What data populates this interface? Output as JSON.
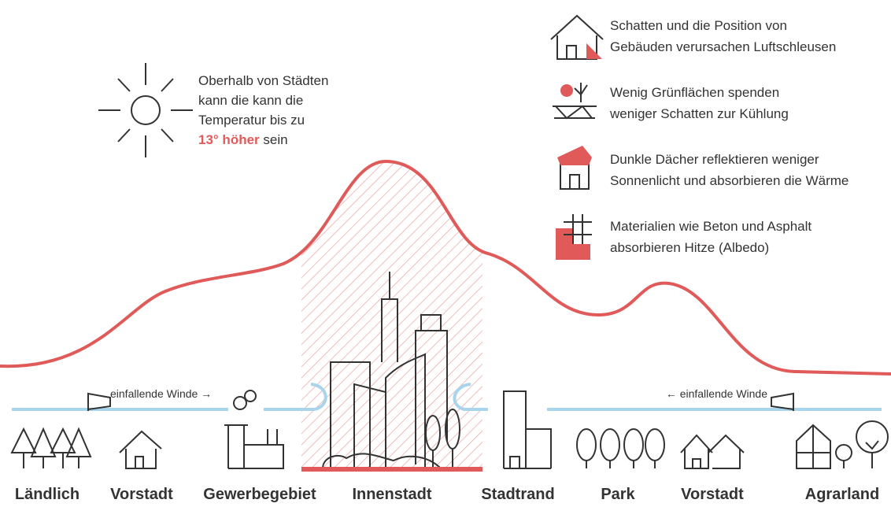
{
  "note": {
    "lines": [
      "Oberhalb von Städten",
      "kann die kann die",
      "Temperatur bis zu"
    ],
    "highlight": "13° höher",
    "tail": "sein"
  },
  "legend": [
    {
      "lines": [
        "Schatten und die Position von",
        "Gebäuden verursachen Luftschleusen"
      ]
    },
    {
      "lines": [
        "Wenig Grünflächen spenden",
        "weniger Schatten zur Kühlung"
      ]
    },
    {
      "lines": [
        "Dunkle Dächer reflektieren weniger",
        "Sonnenlicht und absorbieren die Wärme"
      ]
    },
    {
      "lines": [
        "Materialien wie Beton und Asphalt",
        "absorbieren Hitze (Albedo)"
      ]
    }
  ],
  "winds": {
    "left": "einfallende Winde →",
    "right": "← einfallende Winde"
  },
  "zones": [
    "Ländlich",
    "Vorstadt",
    "Gewerbegebiet",
    "Innenstadt",
    "Stadtrand",
    "Park",
    "Vorstadt",
    "Agrarland"
  ]
}
